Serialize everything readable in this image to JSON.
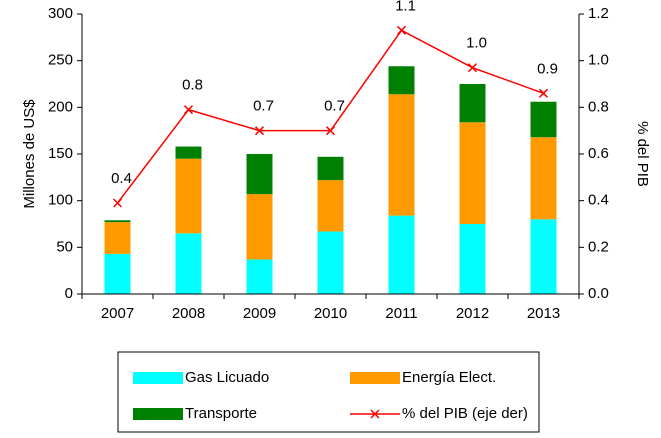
{
  "chart_data": {
    "type": "bar",
    "categories": [
      "2007",
      "2008",
      "2009",
      "2010",
      "2011",
      "2012",
      "2013"
    ],
    "ylabel": "Millones de US$",
    "y2label": "% del PIB",
    "stacked": true,
    "ylim": [
      0,
      300
    ],
    "yticks": [
      0,
      50,
      100,
      150,
      200,
      250,
      300
    ],
    "y2lim": [
      0,
      1.2
    ],
    "y2ticks": [
      {
        "value": 0,
        "label": "0.0"
      },
      0.2,
      0.4,
      0.6,
      0.8,
      {
        "value": 1,
        "label": "1.0"
      },
      1.2
    ],
    "series": [
      {
        "name": "Gas Licuado",
        "color": "#00ffff",
        "values": [
          43,
          65,
          37,
          67,
          84,
          75,
          80
        ]
      },
      {
        "name": "Energía Elect.",
        "color": "#ff9900",
        "values": [
          34,
          80,
          70,
          55,
          130,
          109,
          88
        ]
      },
      {
        "name": "Transporte",
        "color": "#008000",
        "values": [
          2,
          13,
          43,
          25,
          30,
          41,
          38
        ]
      },
      {
        "name": "% del PIB (eje der)",
        "color": "#ff0000",
        "type": "line",
        "axis": "y2",
        "values": [
          0.39,
          0.79,
          0.7,
          0.7,
          1.13,
          0.97,
          0.86
        ],
        "value_labels": [
          "0.4",
          "0.8",
          "0.7",
          "0.7",
          "1.1",
          "1.0",
          "0.9"
        ]
      }
    ],
    "legend": "bottom"
  }
}
